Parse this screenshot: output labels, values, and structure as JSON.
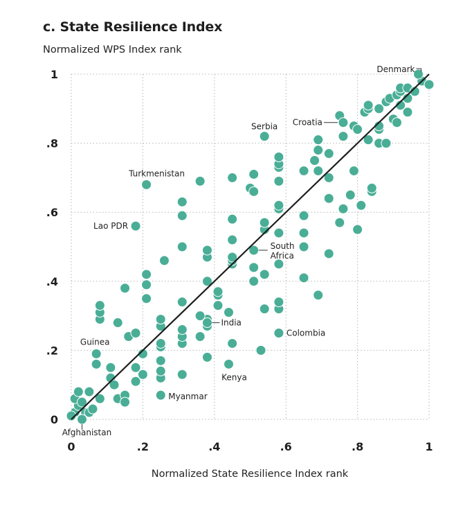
{
  "chart_data": {
    "type": "scatter",
    "title": "c. State Resilience Index",
    "ylabel": "Normalized WPS Index rank",
    "xlabel": "Normalized State Resilience Index rank",
    "xlim": [
      0,
      1
    ],
    "ylim": [
      0,
      1
    ],
    "xticks": [
      {
        "v": 0,
        "label": "0"
      },
      {
        "v": 0.2,
        "label": ".2"
      },
      {
        "v": 0.4,
        "label": ".4"
      },
      {
        "v": 0.6,
        "label": ".6"
      },
      {
        "v": 0.8,
        "label": ".8"
      },
      {
        "v": 1,
        "label": "1"
      }
    ],
    "yticks": [
      {
        "v": 0,
        "label": "0"
      },
      {
        "v": 0.2,
        "label": ".2"
      },
      {
        "v": 0.4,
        "label": ".4"
      },
      {
        "v": 0.6,
        "label": ".6"
      },
      {
        "v": 0.8,
        "label": ".8"
      },
      {
        "v": 1,
        "label": "1"
      }
    ],
    "grid": true,
    "point_color": "#4aae96",
    "reference_line": {
      "from": [
        0,
        0
      ],
      "to": [
        1,
        1
      ],
      "color": "#1e1e1e"
    },
    "labeled_points": [
      {
        "name": "Denmark",
        "x": 0.97,
        "y": 1.0
      },
      {
        "name": "Croatia",
        "x": 0.76,
        "y": 0.86
      },
      {
        "name": "Serbia",
        "x": 0.54,
        "y": 0.82
      },
      {
        "name": "Turkmenistan",
        "x": 0.21,
        "y": 0.68
      },
      {
        "name": "Lao PDR",
        "x": 0.18,
        "y": 0.56
      },
      {
        "name": "South Africa",
        "x": 0.51,
        "y": 0.49
      },
      {
        "name": "India",
        "x": 0.38,
        "y": 0.28
      },
      {
        "name": "Colombia",
        "x": 0.58,
        "y": 0.25
      },
      {
        "name": "Guinea",
        "x": 0.07,
        "y": 0.19
      },
      {
        "name": "Kenya",
        "x": 0.44,
        "y": 0.16
      },
      {
        "name": "Myanmar",
        "x": 0.25,
        "y": 0.07
      },
      {
        "name": "Afghanistan",
        "x": 0.03,
        "y": 0.0
      }
    ],
    "points": [
      {
        "x": 0.01,
        "y": 0.02
      },
      {
        "x": 0.0,
        "y": 0.01
      },
      {
        "x": 0.02,
        "y": 0.04
      },
      {
        "x": 0.01,
        "y": 0.06
      },
      {
        "x": 0.03,
        "y": 0.05
      },
      {
        "x": 0.04,
        "y": 0.02
      },
      {
        "x": 0.05,
        "y": 0.02
      },
      {
        "x": 0.06,
        "y": 0.03
      },
      {
        "x": 0.02,
        "y": 0.08
      },
      {
        "x": 0.05,
        "y": 0.08
      },
      {
        "x": 0.08,
        "y": 0.06
      },
      {
        "x": 0.07,
        "y": 0.16
      },
      {
        "x": 0.11,
        "y": 0.15
      },
      {
        "x": 0.11,
        "y": 0.12
      },
      {
        "x": 0.12,
        "y": 0.1
      },
      {
        "x": 0.13,
        "y": 0.06
      },
      {
        "x": 0.15,
        "y": 0.07
      },
      {
        "x": 0.15,
        "y": 0.05
      },
      {
        "x": 0.18,
        "y": 0.11
      },
      {
        "x": 0.2,
        "y": 0.13
      },
      {
        "x": 0.18,
        "y": 0.15
      },
      {
        "x": 0.2,
        "y": 0.19
      },
      {
        "x": 0.25,
        "y": 0.12
      },
      {
        "x": 0.25,
        "y": 0.14
      },
      {
        "x": 0.25,
        "y": 0.17
      },
      {
        "x": 0.25,
        "y": 0.21
      },
      {
        "x": 0.25,
        "y": 0.22
      },
      {
        "x": 0.31,
        "y": 0.13
      },
      {
        "x": 0.31,
        "y": 0.22
      },
      {
        "x": 0.31,
        "y": 0.24
      },
      {
        "x": 0.31,
        "y": 0.26
      },
      {
        "x": 0.36,
        "y": 0.24
      },
      {
        "x": 0.38,
        "y": 0.27
      },
      {
        "x": 0.38,
        "y": 0.18
      },
      {
        "x": 0.38,
        "y": 0.29
      },
      {
        "x": 0.36,
        "y": 0.3
      },
      {
        "x": 0.41,
        "y": 0.33
      },
      {
        "x": 0.41,
        "y": 0.36
      },
      {
        "x": 0.41,
        "y": 0.37
      },
      {
        "x": 0.44,
        "y": 0.31
      },
      {
        "x": 0.45,
        "y": 0.22
      },
      {
        "x": 0.53,
        "y": 0.2
      },
      {
        "x": 0.54,
        "y": 0.32
      },
      {
        "x": 0.58,
        "y": 0.32
      },
      {
        "x": 0.58,
        "y": 0.34
      },
      {
        "x": 0.69,
        "y": 0.36
      },
      {
        "x": 0.13,
        "y": 0.28
      },
      {
        "x": 0.16,
        "y": 0.24
      },
      {
        "x": 0.18,
        "y": 0.25
      },
      {
        "x": 0.08,
        "y": 0.29
      },
      {
        "x": 0.08,
        "y": 0.31
      },
      {
        "x": 0.08,
        "y": 0.33
      },
      {
        "x": 0.15,
        "y": 0.38
      },
      {
        "x": 0.21,
        "y": 0.35
      },
      {
        "x": 0.21,
        "y": 0.39
      },
      {
        "x": 0.21,
        "y": 0.42
      },
      {
        "x": 0.25,
        "y": 0.27
      },
      {
        "x": 0.25,
        "y": 0.29
      },
      {
        "x": 0.26,
        "y": 0.46
      },
      {
        "x": 0.31,
        "y": 0.34
      },
      {
        "x": 0.31,
        "y": 0.5
      },
      {
        "x": 0.38,
        "y": 0.4
      },
      {
        "x": 0.38,
        "y": 0.47
      },
      {
        "x": 0.38,
        "y": 0.49
      },
      {
        "x": 0.45,
        "y": 0.45
      },
      {
        "x": 0.45,
        "y": 0.46
      },
      {
        "x": 0.45,
        "y": 0.47
      },
      {
        "x": 0.45,
        "y": 0.52
      },
      {
        "x": 0.45,
        "y": 0.58
      },
      {
        "x": 0.51,
        "y": 0.4
      },
      {
        "x": 0.51,
        "y": 0.44
      },
      {
        "x": 0.54,
        "y": 0.42
      },
      {
        "x": 0.54,
        "y": 0.55
      },
      {
        "x": 0.54,
        "y": 0.57
      },
      {
        "x": 0.58,
        "y": 0.45
      },
      {
        "x": 0.58,
        "y": 0.54
      },
      {
        "x": 0.58,
        "y": 0.61
      },
      {
        "x": 0.58,
        "y": 0.62
      },
      {
        "x": 0.65,
        "y": 0.41
      },
      {
        "x": 0.65,
        "y": 0.5
      },
      {
        "x": 0.65,
        "y": 0.54
      },
      {
        "x": 0.65,
        "y": 0.59
      },
      {
        "x": 0.72,
        "y": 0.48
      },
      {
        "x": 0.75,
        "y": 0.57
      },
      {
        "x": 0.76,
        "y": 0.61
      },
      {
        "x": 0.78,
        "y": 0.65
      },
      {
        "x": 0.8,
        "y": 0.55
      },
      {
        "x": 0.81,
        "y": 0.62
      },
      {
        "x": 0.72,
        "y": 0.64
      },
      {
        "x": 0.31,
        "y": 0.59
      },
      {
        "x": 0.31,
        "y": 0.63
      },
      {
        "x": 0.36,
        "y": 0.69
      },
      {
        "x": 0.45,
        "y": 0.7
      },
      {
        "x": 0.5,
        "y": 0.67
      },
      {
        "x": 0.51,
        "y": 0.66
      },
      {
        "x": 0.51,
        "y": 0.71
      },
      {
        "x": 0.58,
        "y": 0.69
      },
      {
        "x": 0.58,
        "y": 0.73
      },
      {
        "x": 0.58,
        "y": 0.74
      },
      {
        "x": 0.58,
        "y": 0.76
      },
      {
        "x": 0.65,
        "y": 0.72
      },
      {
        "x": 0.69,
        "y": 0.72
      },
      {
        "x": 0.68,
        "y": 0.75
      },
      {
        "x": 0.69,
        "y": 0.78
      },
      {
        "x": 0.69,
        "y": 0.81
      },
      {
        "x": 0.72,
        "y": 0.77
      },
      {
        "x": 0.72,
        "y": 0.7
      },
      {
        "x": 0.79,
        "y": 0.72
      },
      {
        "x": 0.84,
        "y": 0.66
      },
      {
        "x": 0.84,
        "y": 0.67
      },
      {
        "x": 0.76,
        "y": 0.82
      },
      {
        "x": 0.79,
        "y": 0.85
      },
      {
        "x": 0.8,
        "y": 0.84
      },
      {
        "x": 0.75,
        "y": 0.88
      },
      {
        "x": 0.82,
        "y": 0.89
      },
      {
        "x": 0.83,
        "y": 0.9
      },
      {
        "x": 0.83,
        "y": 0.91
      },
      {
        "x": 0.83,
        "y": 0.81
      },
      {
        "x": 0.86,
        "y": 0.8
      },
      {
        "x": 0.86,
        "y": 0.84
      },
      {
        "x": 0.86,
        "y": 0.85
      },
      {
        "x": 0.86,
        "y": 0.9
      },
      {
        "x": 0.88,
        "y": 0.8
      },
      {
        "x": 0.88,
        "y": 0.92
      },
      {
        "x": 0.89,
        "y": 0.93
      },
      {
        "x": 0.9,
        "y": 0.87
      },
      {
        "x": 0.91,
        "y": 0.86
      },
      {
        "x": 0.91,
        "y": 0.94
      },
      {
        "x": 0.92,
        "y": 0.91
      },
      {
        "x": 0.92,
        "y": 0.95
      },
      {
        "x": 0.92,
        "y": 0.96
      },
      {
        "x": 0.94,
        "y": 0.89
      },
      {
        "x": 0.94,
        "y": 0.93
      },
      {
        "x": 0.94,
        "y": 0.96
      },
      {
        "x": 0.96,
        "y": 0.95
      },
      {
        "x": 0.98,
        "y": 0.98
      },
      {
        "x": 1.0,
        "y": 0.97
      }
    ]
  }
}
